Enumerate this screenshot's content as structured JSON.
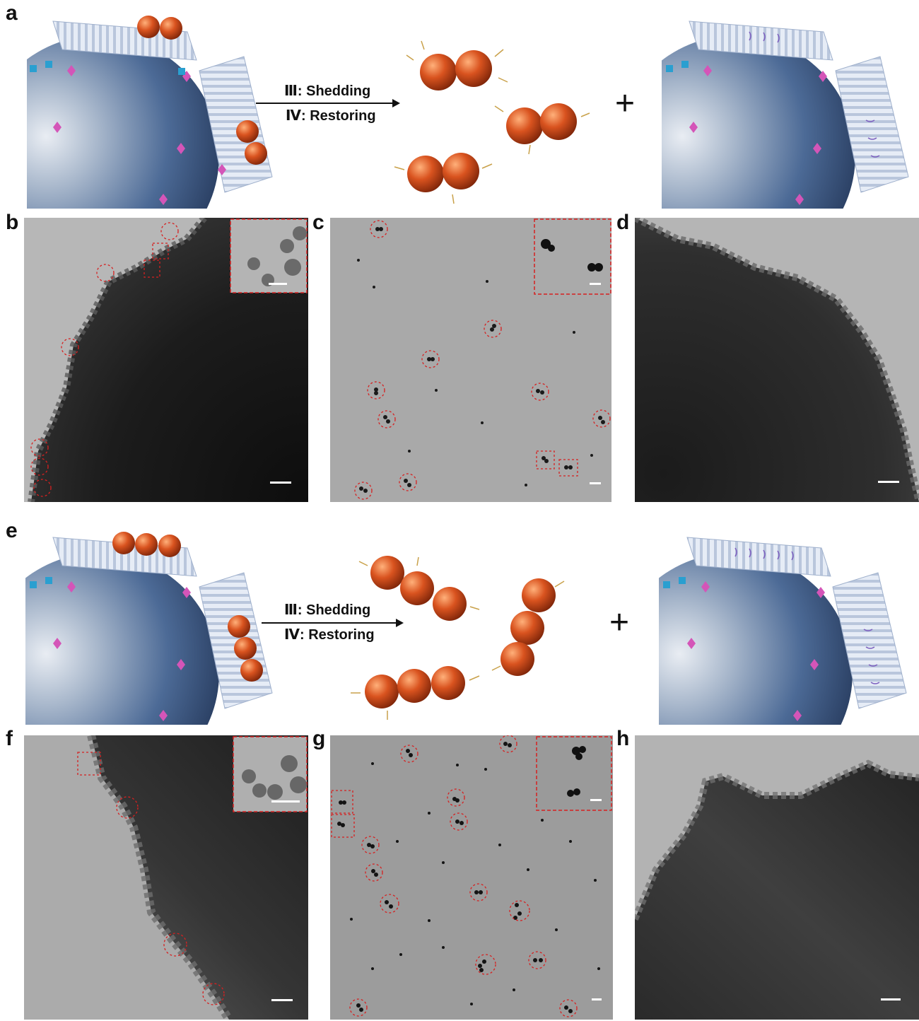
{
  "panels": {
    "a": "a",
    "b": "b",
    "c": "c",
    "d": "d",
    "e": "e",
    "f": "f",
    "g": "g",
    "h": "h"
  },
  "scheme_top": {
    "step1": "Ⅲ: Shedding",
    "step2": "Ⅳ: Restoring",
    "plus": "+",
    "particles_per_cluster": 2
  },
  "scheme_bottom": {
    "step1": "Ⅲ: Shedding",
    "step2": "Ⅳ: Restoring",
    "plus": "+",
    "particles_per_cluster": 3
  },
  "colors": {
    "nanoparticle": "#c8401c",
    "bead": "#3f5f8f",
    "sheet": "#dfe7f4",
    "marker_dash": "#d62020",
    "scale_bar": "#ffffff"
  }
}
